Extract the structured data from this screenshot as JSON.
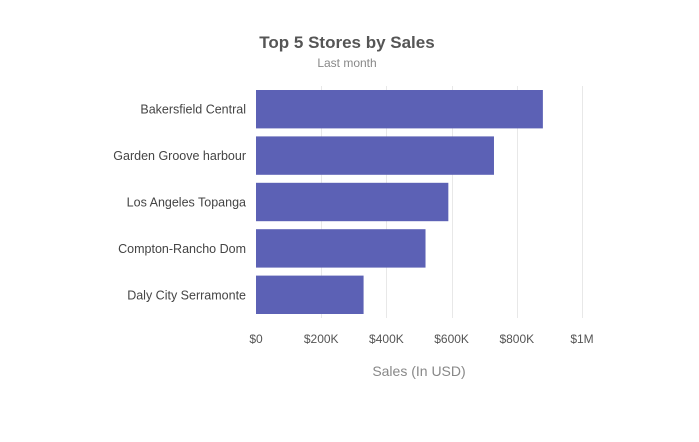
{
  "chart_data": {
    "type": "bar",
    "orientation": "horizontal",
    "title": "Top 5 Stores by Sales",
    "subtitle": "Last month",
    "xlabel": "Sales (In USD)",
    "ylabel": "",
    "categories": [
      "Bakersfield Central",
      "Garden Groove harbour",
      "Los Angeles Topanga",
      "Compton-Rancho Dom",
      "Daly City Serramonte"
    ],
    "values": [
      880000,
      730000,
      590000,
      520000,
      330000
    ],
    "xlim": [
      0,
      1000000
    ],
    "x_ticks": [
      {
        "value": 0,
        "label": "$0"
      },
      {
        "value": 200000,
        "label": "$200K"
      },
      {
        "value": 400000,
        "label": "$400K"
      },
      {
        "value": 600000,
        "label": "$600K"
      },
      {
        "value": 800000,
        "label": "$800K"
      },
      {
        "value": 1000000,
        "label": "$1M"
      }
    ],
    "grid": true,
    "colors": {
      "bar": "#5c61b5",
      "grid": "#e8e8e8",
      "title": "#555555",
      "subtitle": "#888888",
      "category_label": "#444444",
      "tick_label": "#555555",
      "axis_label": "#888888"
    }
  }
}
